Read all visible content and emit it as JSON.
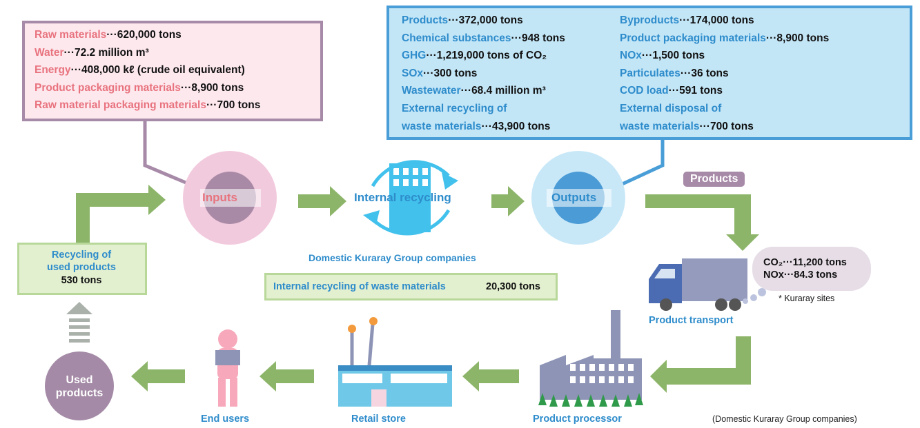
{
  "inputs": {
    "items": [
      {
        "label": "Raw materials",
        "value": "···620,000 tons"
      },
      {
        "label": "Water",
        "value": "···72.2 million m³"
      },
      {
        "label": "Energy",
        "value": "···408,000 kℓ (crude oil equivalent)"
      },
      {
        "label": "Product packaging materials",
        "value": "···8,900 tons"
      },
      {
        "label": "Raw material packaging materials",
        "value": "···700 tons"
      }
    ]
  },
  "outputs": {
    "left": [
      {
        "label": "Products",
        "value": "···372,000 tons"
      },
      {
        "label": "Chemical substances",
        "value": "···948 tons"
      },
      {
        "label": "GHG",
        "value": "···1,219,000 tons of CO₂"
      },
      {
        "label": "SOx",
        "value": "···300 tons"
      },
      {
        "label": "Wastewater",
        "value": "···68.4 million m³"
      },
      {
        "label": [
          "External recycling of",
          "waste materials"
        ],
        "value": "···43,900 tons"
      }
    ],
    "right": [
      {
        "label": "Byproducts",
        "value": "···174,000 tons"
      },
      {
        "label": "Product packaging materials",
        "value": "···8,900 tons"
      },
      {
        "label": "NOx",
        "value": "···1,500 tons"
      },
      {
        "label": "Particulates",
        "value": "···36 tons"
      },
      {
        "label": "COD load",
        "value": "···591 tons"
      },
      {
        "label": [
          "External disposal of",
          "waste materials"
        ],
        "value": "···700 tons"
      }
    ]
  },
  "nodes": {
    "inputs": "Inputs",
    "internal_recycling": "Internal recycling",
    "outputs": "Outputs",
    "domestic": "Domestic Kuraray Group companies",
    "products_tag": "Products",
    "product_transport": "Product transport",
    "product_processor": "Product processor",
    "retail_store": "Retail store",
    "end_users": "End users",
    "used_products": "Used products"
  },
  "internal_recycling_box": {
    "label": "Internal recycling of waste materials",
    "value": "20,300 tons"
  },
  "recycling_used": {
    "label": "Recycling of used products",
    "value": "530 tons"
  },
  "transport_emissions": {
    "items": [
      "CO₂···11,200 tons",
      "NOx···84.3 tons"
    ],
    "note": "* Kuraray sites"
  },
  "footnote": "(Domestic Kuraray Group companies)"
}
